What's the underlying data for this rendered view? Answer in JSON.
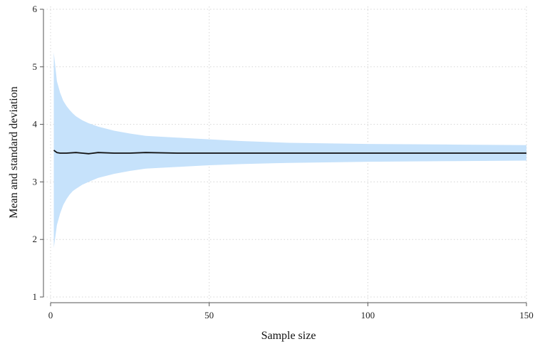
{
  "chart_data": {
    "type": "area",
    "title": "",
    "xlabel": "Sample size",
    "ylabel": "Mean and standard deviation",
    "xlim": [
      0,
      150
    ],
    "ylim": [
      1,
      6
    ],
    "x_ticks": [
      0,
      50,
      100,
      150
    ],
    "y_ticks": [
      1,
      2,
      3,
      4,
      5,
      6
    ],
    "grid": true,
    "legend": "none",
    "colors": {
      "band": "#c6e2fb",
      "mean_line": "#111111"
    },
    "series": [
      {
        "kind": "band",
        "x": [
          1,
          2,
          3,
          4,
          5,
          6,
          7,
          8,
          10,
          12,
          15,
          20,
          25,
          30,
          40,
          50,
          60,
          75,
          100,
          125,
          150
        ],
        "lower": [
          1.85,
          2.25,
          2.45,
          2.6,
          2.7,
          2.78,
          2.84,
          2.88,
          2.95,
          3.0,
          3.07,
          3.14,
          3.19,
          3.23,
          3.26,
          3.29,
          3.31,
          3.33,
          3.35,
          3.36,
          3.37
        ],
        "upper": [
          5.25,
          4.75,
          4.55,
          4.41,
          4.32,
          4.25,
          4.19,
          4.14,
          4.07,
          4.02,
          3.96,
          3.89,
          3.84,
          3.8,
          3.77,
          3.74,
          3.71,
          3.68,
          3.66,
          3.65,
          3.64
        ]
      },
      {
        "kind": "line",
        "x": [
          1,
          2,
          3,
          5,
          8,
          10,
          12,
          15,
          20,
          25,
          30,
          40,
          50,
          60,
          75,
          100,
          125,
          150
        ],
        "values": [
          3.55,
          3.51,
          3.5,
          3.5,
          3.51,
          3.5,
          3.49,
          3.51,
          3.5,
          3.5,
          3.51,
          3.5,
          3.5,
          3.5,
          3.5,
          3.5,
          3.5,
          3.5
        ]
      }
    ]
  }
}
